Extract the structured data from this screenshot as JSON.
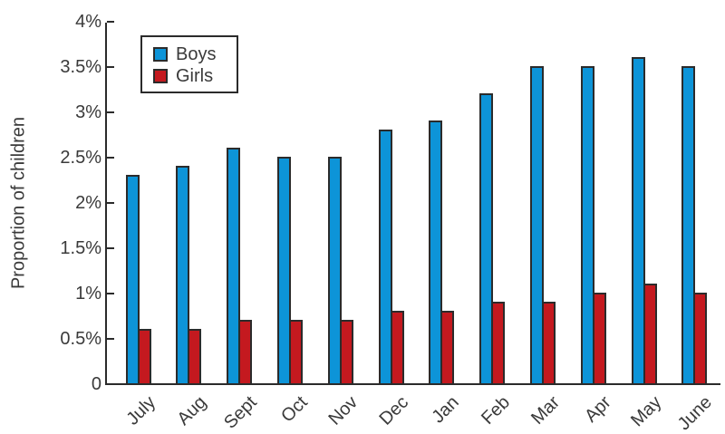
{
  "chart_data": {
    "type": "bar",
    "title": "",
    "xlabel": "",
    "ylabel": "Proportion of children",
    "categories": [
      "July",
      "Aug",
      "Sept",
      "Oct",
      "Nov",
      "Dec",
      "Jan",
      "Feb",
      "Mar",
      "Apr",
      "May",
      "June"
    ],
    "series": [
      {
        "name": "Boys",
        "color": "#0d94d8",
        "values": [
          2.3,
          2.4,
          2.6,
          2.5,
          2.5,
          2.8,
          2.9,
          3.2,
          3.5,
          3.5,
          3.6,
          3.5
        ]
      },
      {
        "name": "Girls",
        "color": "#c4191f",
        "values": [
          0.6,
          0.6,
          0.7,
          0.7,
          0.7,
          0.8,
          0.8,
          0.9,
          0.9,
          1.0,
          1.1,
          1.0
        ]
      }
    ],
    "unit": "%",
    "ylim": [
      0,
      4
    ],
    "ytick_step": 0.5,
    "ytick_labels": [
      "0",
      "0.5%",
      "1%",
      "1.5%",
      "2%",
      "2.5%",
      "3%",
      "3.5%",
      "4%"
    ],
    "legend_position": "top-left",
    "grid": false,
    "axis_color": "#2b2b2b"
  }
}
